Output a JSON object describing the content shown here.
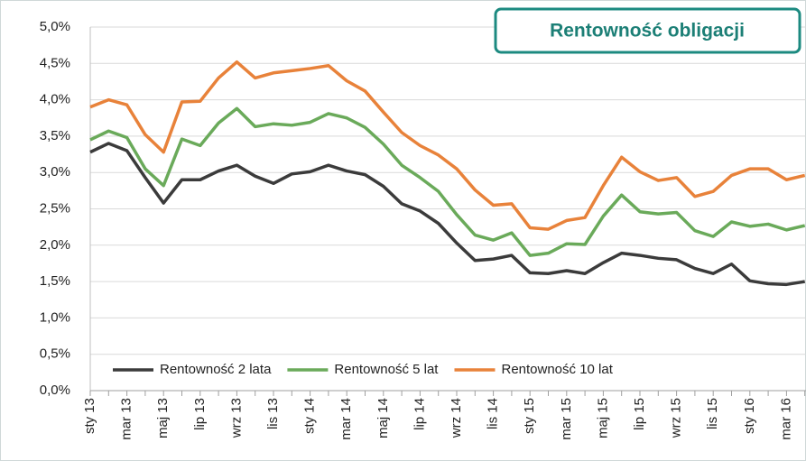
{
  "chart_data": {
    "type": "line",
    "title": "Rentowność obligacji",
    "categories": [
      "sty 13",
      null,
      "mar 13",
      null,
      "maj 13",
      null,
      "lip 13",
      null,
      "wrz 13",
      null,
      "lis 13",
      null,
      "sty 14",
      null,
      "mar 14",
      null,
      "maj 14",
      null,
      "lip 14",
      null,
      "wrz 14",
      null,
      "lis 14",
      null,
      "sty 15",
      null,
      "mar 15",
      null,
      "maj 15",
      null,
      "lip 15",
      null,
      "wrz 15",
      null,
      "lis 15",
      null,
      "sty 16",
      null,
      "mar 16",
      null
    ],
    "series": [
      {
        "name": "Rentowność 2 lata",
        "color": "#3b3b3b",
        "values": [
          3.28,
          3.4,
          3.3,
          2.93,
          2.58,
          2.9,
          2.9,
          3.02,
          3.1,
          2.95,
          2.85,
          2.98,
          3.01,
          3.1,
          3.02,
          2.97,
          2.81,
          2.57,
          2.47,
          2.3,
          2.03,
          1.79,
          1.81,
          1.86,
          1.62,
          1.61,
          1.65,
          1.61,
          1.76,
          1.89,
          1.86,
          1.82,
          1.8,
          1.68,
          1.61,
          1.74,
          1.51,
          1.47,
          1.46,
          1.5
        ]
      },
      {
        "name": "Rentowność 5 lat",
        "color": "#6aaa5a",
        "values": [
          3.45,
          3.57,
          3.48,
          3.05,
          2.82,
          3.46,
          3.37,
          3.68,
          3.88,
          3.63,
          3.67,
          3.65,
          3.69,
          3.81,
          3.75,
          3.62,
          3.39,
          3.1,
          2.93,
          2.74,
          2.42,
          2.14,
          2.07,
          2.17,
          1.86,
          1.89,
          2.02,
          2.01,
          2.4,
          2.69,
          2.46,
          2.43,
          2.45,
          2.2,
          2.12,
          2.32,
          2.26,
          2.29,
          2.21,
          2.27
        ]
      },
      {
        "name": "Rentowność 10 lat",
        "color": "#e8823a",
        "values": [
          3.9,
          4.0,
          3.93,
          3.52,
          3.28,
          3.97,
          3.98,
          4.3,
          4.52,
          4.3,
          4.37,
          4.4,
          4.43,
          4.47,
          4.26,
          4.12,
          3.83,
          3.55,
          3.37,
          3.24,
          3.05,
          2.76,
          2.55,
          2.57,
          2.24,
          2.22,
          2.34,
          2.38,
          2.82,
          3.21,
          3.01,
          2.89,
          2.93,
          2.67,
          2.74,
          2.96,
          3.05,
          3.05,
          2.9,
          2.96
        ]
      }
    ],
    "ylim": [
      0,
      5
    ],
    "yticks": [
      {
        "value": 0,
        "label": "0,0%"
      },
      {
        "value": 0.5,
        "label": "0,5%"
      },
      {
        "value": 1,
        "label": "1,0%"
      },
      {
        "value": 1.5,
        "label": "1,5%"
      },
      {
        "value": 2,
        "label": "2,0%"
      },
      {
        "value": 2.5,
        "label": "2,5%"
      },
      {
        "value": 3,
        "label": "3,0%"
      },
      {
        "value": 3.5,
        "label": "3,5%"
      },
      {
        "value": 4,
        "label": "4,0%"
      },
      {
        "value": 4.5,
        "label": "4,5%"
      },
      {
        "value": 5,
        "label": "5,0%"
      }
    ],
    "grid": true,
    "legend": "bottom"
  }
}
